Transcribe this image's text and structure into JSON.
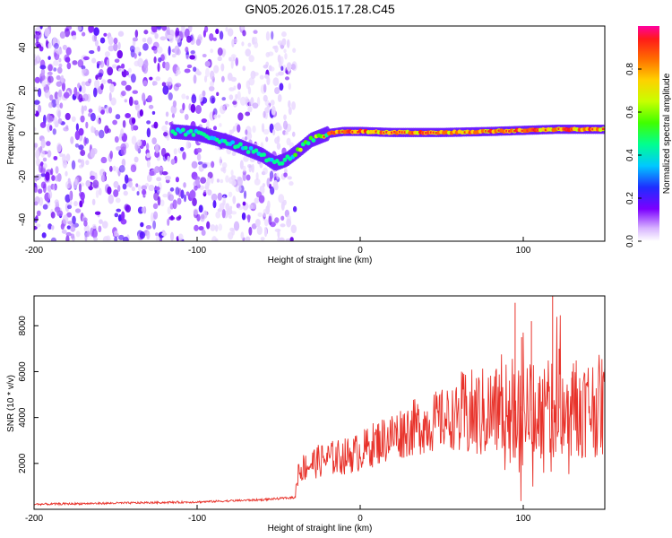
{
  "title": "GN05.2026.015.17.28.C45",
  "chart_data": [
    {
      "type": "heatmap",
      "xlabel": "Height of straight line (km)",
      "ylabel": "Frequency (Hz)",
      "xlim": [
        -200,
        150
      ],
      "ylim": [
        -50,
        50
      ],
      "xticks": [
        -200,
        -100,
        0,
        100
      ],
      "yticks": [
        -40,
        -20,
        0,
        20,
        40
      ],
      "colorbar": {
        "label": "Normalized spectral amplitude",
        "range": [
          0,
          1
        ],
        "ticks": [
          0.0,
          0.2,
          0.4,
          0.6,
          0.8
        ]
      },
      "noise_region_km": [
        -200,
        -50
      ],
      "signal_track": [
        {
          "x": -115,
          "y": 1
        },
        {
          "x": -100,
          "y": 0
        },
        {
          "x": -90,
          "y": -2
        },
        {
          "x": -80,
          "y": -4
        },
        {
          "x": -70,
          "y": -7
        },
        {
          "x": -60,
          "y": -10
        },
        {
          "x": -52,
          "y": -14
        },
        {
          "x": -45,
          "y": -12
        },
        {
          "x": -38,
          "y": -8
        },
        {
          "x": -30,
          "y": -3
        },
        {
          "x": -20,
          "y": 0
        },
        {
          "x": -10,
          "y": 1
        },
        {
          "x": 0,
          "y": 1
        },
        {
          "x": 20,
          "y": 0.5
        },
        {
          "x": 50,
          "y": 0.5
        },
        {
          "x": 80,
          "y": 1
        },
        {
          "x": 100,
          "y": 1.5
        },
        {
          "x": 120,
          "y": 2
        },
        {
          "x": 150,
          "y": 2
        }
      ]
    },
    {
      "type": "line",
      "xlabel": "Height of straight line (km)",
      "ylabel": "SNR (10 * v/v)",
      "xlim": [
        -200,
        150
      ],
      "ylim": [
        0,
        9300
      ],
      "xticks": [
        -200,
        -100,
        0,
        100
      ],
      "yticks": [
        2000,
        4000,
        6000,
        8000
      ],
      "color": "#e8322a",
      "series": [
        {
          "name": "SNR",
          "x": [
            -200,
            -150,
            -100,
            -60,
            -40,
            -38,
            -30,
            -20,
            -10,
            0,
            10,
            20,
            30,
            40,
            50,
            60,
            70,
            80,
            90,
            100,
            110,
            120,
            130,
            140,
            150
          ],
          "y": [
            200,
            250,
            300,
            400,
            500,
            1700,
            2000,
            2200,
            2300,
            2500,
            2900,
            3200,
            3500,
            3700,
            3900,
            4000,
            4100,
            4200,
            4300,
            4300,
            4300,
            4400,
            4400,
            4500,
            4500
          ]
        }
      ],
      "spikes": [
        {
          "x": 95,
          "y": 9000
        },
        {
          "x": 99,
          "y": 7500
        },
        {
          "x": 105,
          "y": 8200
        },
        {
          "x": 118,
          "y": 9300
        },
        {
          "x": 122,
          "y": 7000
        },
        {
          "x": 130,
          "y": 6000
        }
      ]
    }
  ]
}
